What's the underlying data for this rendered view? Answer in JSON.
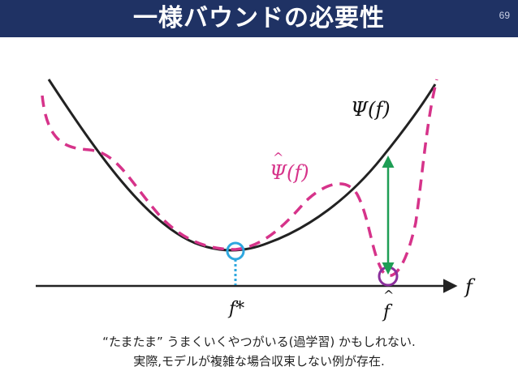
{
  "slide": {
    "title": "一様バウンドの必要性",
    "page_number": "69"
  },
  "diagram": {
    "label_psi": "Ψ(f)",
    "label_psi_hat": "Ψ(f)",
    "label_f_axis": "f",
    "label_f_star": "f*",
    "label_f_hat": "f",
    "colors": {
      "true_risk": "#222222",
      "empirical_risk": "#d6338a",
      "arrow": "#1e9e55",
      "f_star_marker": "#2ea7df",
      "f_hat_marker": "#8b2f9c",
      "axis": "#222222"
    }
  },
  "caption": {
    "line1": "“たまたま” うまくいくやつがいる(過学習) かもしれない.",
    "line2": "実際,モデルが複雑な場合収束しない例が存在."
  }
}
